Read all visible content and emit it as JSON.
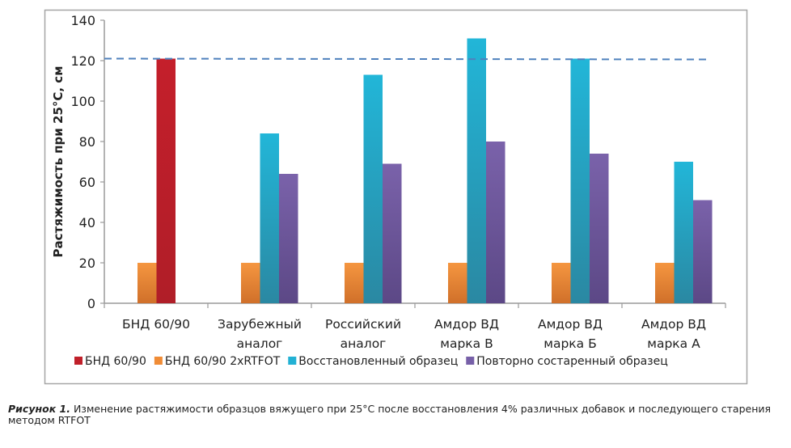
{
  "chart_data": {
    "type": "bar",
    "title": "",
    "xlabel": "",
    "ylabel": "Растяжимость при 25°С, см",
    "ylim": [
      0,
      140
    ],
    "yticks": [
      0,
      20,
      40,
      60,
      80,
      100,
      120,
      140
    ],
    "grid": false,
    "legend_position": "bottom",
    "categories": [
      [
        "БНД 60/90"
      ],
      [
        "Зарубежный",
        "аналог"
      ],
      [
        "Российский",
        "аналог"
      ],
      [
        "Амдор ВД",
        "марка В"
      ],
      [
        "Амдор ВД",
        "марка Б"
      ],
      [
        "Амдор ВД",
        "марка А"
      ]
    ],
    "series": [
      {
        "name": "БНД 60/90 2xRTFOT",
        "color": "#f08c36",
        "slot": 0,
        "values": [
          20,
          20,
          20,
          20,
          20,
          20
        ]
      },
      {
        "name": "БНД 60/90",
        "color": "#c0202a",
        "slot": 1,
        "values": [
          121,
          null,
          null,
          null,
          null,
          null
        ]
      },
      {
        "name": "Восстановленный образец",
        "color": "#22b1d4",
        "slot": 1,
        "values": [
          null,
          84,
          113,
          131,
          121,
          70
        ]
      },
      {
        "name": "Повторно состаренный образец",
        "color": "#7760a8",
        "slot": 2,
        "values": [
          null,
          64,
          69,
          80,
          74,
          51
        ]
      }
    ],
    "legend_order": [
      1,
      0,
      2,
      3
    ],
    "reference_line": {
      "value": 121,
      "style": "dashed",
      "color": "#4f81bd"
    }
  },
  "caption": {
    "label": "Рисунок 1.",
    "text": " Изменение растяжимости образцов вяжущего при 25°С после восстановления 4% различных добавок и последующего старения методом RTFOT"
  }
}
